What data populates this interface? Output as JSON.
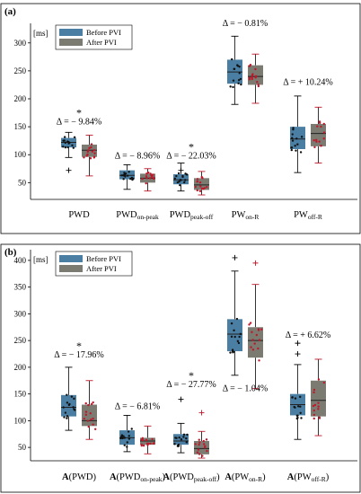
{
  "colors": {
    "before": "#4a7fa3",
    "after": "#7b7b72",
    "before_dot": "#111111",
    "after_dot": "#c0182a",
    "whisker": "#000000"
  },
  "chart_data": [
    {
      "panel": "(a)",
      "type": "box",
      "unit_label": "[ms]",
      "ylim": [
        20,
        335
      ],
      "yticks": [
        "50",
        "100",
        "150",
        "200",
        "250",
        "300"
      ],
      "legend": [
        "Before PVI",
        "After PVI"
      ],
      "categories": [
        {
          "main": "PWD",
          "sub": ""
        },
        {
          "main": "PWD",
          "sub": "on-peak"
        },
        {
          "main": "PWD",
          "sub": "peak-off"
        },
        {
          "main": "PW",
          "sub": "on-R"
        },
        {
          "main": "PW",
          "sub": "off-R"
        }
      ],
      "series": [
        {
          "name": "Before PVI",
          "boxes": [
            {
              "min": 95,
              "q1": 113,
              "median": 122,
              "q3": 130,
              "max": 140,
              "outliers": [
                72
              ]
            },
            {
              "min": 38,
              "q1": 56,
              "median": 63,
              "q3": 72,
              "max": 82,
              "outliers": []
            },
            {
              "min": 35,
              "q1": 47,
              "median": 55,
              "q3": 65,
              "max": 85,
              "outliers": [
                72
              ]
            },
            {
              "min": 190,
              "q1": 227,
              "median": 248,
              "q3": 270,
              "max": 312,
              "outliers": []
            },
            {
              "min": 68,
              "q1": 110,
              "median": 128,
              "q3": 150,
              "max": 205,
              "outliers": []
            }
          ]
        },
        {
          "name": "After PVI",
          "boxes": [
            {
              "min": 62,
              "q1": 96,
              "median": 108,
              "q3": 118,
              "max": 135,
              "outliers": []
            },
            {
              "min": 35,
              "q1": 50,
              "median": 58,
              "q3": 66,
              "max": 75,
              "outliers": []
            },
            {
              "min": 28,
              "q1": 37,
              "median": 46,
              "q3": 58,
              "max": 70,
              "outliers": []
            },
            {
              "min": 192,
              "q1": 225,
              "median": 240,
              "q3": 260,
              "max": 280,
              "outliers": []
            },
            {
              "min": 85,
              "q1": 115,
              "median": 138,
              "q3": 155,
              "max": 185,
              "outliers": []
            }
          ]
        }
      ],
      "annotations": [
        {
          "cat": 0,
          "text": "Δ = − 9.84%",
          "y": 154,
          "star": true
        },
        {
          "cat": 1,
          "text": "Δ = − 8.96%",
          "y": 93,
          "star": false
        },
        {
          "cat": 2,
          "text": "Δ = − 22.03%",
          "y": 93,
          "star": true
        },
        {
          "cat": 3,
          "text": "Δ = − 0.81%",
          "y": 330,
          "star": false
        },
        {
          "cat": 4,
          "text": "Δ = + 10.24%",
          "y": 225,
          "star": false
        }
      ]
    },
    {
      "panel": "(b)",
      "type": "box",
      "unit_label": "[ms]",
      "ylim": [
        25,
        420
      ],
      "yticks": [
        "50",
        "100",
        "150",
        "200",
        "250",
        "300",
        "350",
        "400"
      ],
      "legend": [
        "Before PVI",
        "After PVI"
      ],
      "categories": [
        {
          "prefix": "A",
          "main": "(PWD)",
          "sub": ""
        },
        {
          "prefix": "A",
          "main": "(PWD",
          "sub": "on-peak",
          "close": ")"
        },
        {
          "prefix": "A",
          "main": "(PWD",
          "sub": "peak-off",
          "close": ")"
        },
        {
          "prefix": "A",
          "main": "(PW",
          "sub": "on-R",
          "close": ")"
        },
        {
          "prefix": "A",
          "main": "(PW",
          "sub": "off-R",
          "close": ")"
        }
      ],
      "series": [
        {
          "name": "Before PVI",
          "boxes": [
            {
              "min": 82,
              "q1": 108,
              "median": 125,
              "q3": 148,
              "max": 200,
              "outliers": []
            },
            {
              "min": 42,
              "q1": 55,
              "median": 68,
              "q3": 82,
              "max": 110,
              "outliers": []
            },
            {
              "min": 40,
              "q1": 55,
              "median": 62,
              "q3": 75,
              "max": 95,
              "outliers": [
                140
              ]
            },
            {
              "min": 185,
              "q1": 230,
              "median": 262,
              "q3": 290,
              "max": 380,
              "outliers": [
                405
              ]
            },
            {
              "min": 65,
              "q1": 110,
              "median": 130,
              "q3": 150,
              "max": 205,
              "outliers": [
                225,
                245
              ]
            }
          ]
        },
        {
          "name": "After PVI",
          "boxes": [
            {
              "min": 65,
              "q1": 90,
              "median": 100,
              "q3": 130,
              "max": 175,
              "outliers": []
            },
            {
              "min": 38,
              "q1": 55,
              "median": 62,
              "q3": 68,
              "max": 90,
              "outliers": []
            },
            {
              "min": 30,
              "q1": 37,
              "median": 48,
              "q3": 62,
              "max": 80,
              "outliers": [
                115
              ]
            },
            {
              "min": 160,
              "q1": 218,
              "median": 250,
              "q3": 275,
              "max": 355,
              "outliers": [
                395
              ]
            },
            {
              "min": 72,
              "q1": 108,
              "median": 138,
              "q3": 175,
              "max": 215,
              "outliers": []
            }
          ]
        }
      ],
      "annotations": [
        {
          "cat": 0,
          "text": "Δ = − 17.96%",
          "y": 218,
          "star": true
        },
        {
          "cat": 1,
          "text": "Δ = − 6.81%",
          "y": 122,
          "star": false
        },
        {
          "cat": 2,
          "text": "Δ = − 27.77%",
          "y": 163,
          "star": true
        },
        {
          "cat": 3,
          "text": "Δ = − 1.04%",
          "y": 155,
          "star": false
        },
        {
          "cat": 4,
          "text": "Δ = + 6.62%",
          "y": 255,
          "star": false
        }
      ]
    }
  ]
}
